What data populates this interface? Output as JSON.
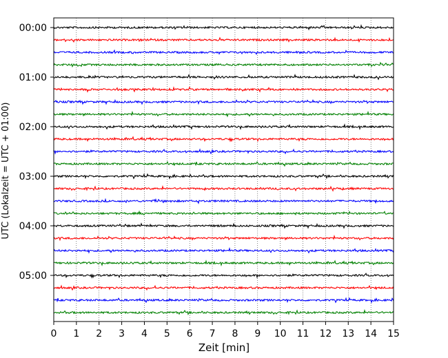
{
  "chart_data": {
    "type": "line",
    "title": "",
    "xlabel": "Zeit  [min]",
    "ylabel": "UTC (Lokalzeit = UTC + 01:00)",
    "xlim": [
      0,
      15
    ],
    "x_ticks": [
      "0",
      "1",
      "2",
      "3",
      "4",
      "5",
      "6",
      "7",
      "8",
      "9",
      "10",
      "11",
      "12",
      "13",
      "14",
      "15"
    ],
    "y_ticks": [
      "00:00",
      "01:00",
      "02:00",
      "03:00",
      "04:00",
      "05:00"
    ],
    "grid": "vertical dotted lines at each minute",
    "trace_interval_minutes": 15,
    "trace_start_times": [
      "00:00",
      "00:15",
      "00:30",
      "00:45",
      "01:00",
      "01:15",
      "01:30",
      "01:45",
      "02:00",
      "02:15",
      "02:30",
      "02:45",
      "03:00",
      "03:15",
      "03:30",
      "03:45",
      "04:00",
      "04:15",
      "04:30",
      "04:45",
      "05:00",
      "05:15",
      "05:30",
      "05:45"
    ],
    "trace_colors": [
      "#000000",
      "#ff0000",
      "#0000ff",
      "#008000"
    ],
    "series": []
  }
}
